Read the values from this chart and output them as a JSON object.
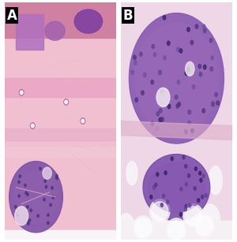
{
  "title": "",
  "panel_A_label": "A",
  "panel_B_label": "B",
  "label_bg_color": "#000000",
  "label_text_color": "#ffffff",
  "label_fontsize": 12,
  "label_fontweight": "bold",
  "border_color": "#ffffff",
  "fig_width": 3.0,
  "fig_height": 3.07,
  "dpi": 100,
  "colors": {
    "pink_bg": "#f0c0d0",
    "pink_surf": "#d080a0",
    "purple1": "#8040a0",
    "purple2": "#a060b0",
    "purple3": "#b070c0",
    "stroma1": "#e8a0c0",
    "stroma2": "#f0c0d0",
    "stroma3": "#e8b0c8",
    "stroma4": "#f4c8d8",
    "vessel_outer": "#c070a0",
    "vessel_inner": "#f8f0f4",
    "tumor1": "#8050a8",
    "tumor1_inner": "#9060b0",
    "cell_dark": "#403070",
    "white_space": "#f0e0ec",
    "fat": "#f8f4f8",
    "fibrous": "#e0b0cc",
    "panel_B_bg": "#eed8e8",
    "tumor_main": "#8858b0",
    "tumor_main_inner": "#9868b8",
    "cell1": "#503080",
    "cell2": "#604090",
    "cell3": "#7050a0",
    "cell4": "#302060",
    "ws": "#f0e8f0",
    "fibrous_B": "#e0b0c8",
    "tumor2": "#7848a8",
    "tumor2_inner": "#8858b0",
    "fat_bg": "#f4f0f4",
    "fat_white": "#ffffff"
  }
}
